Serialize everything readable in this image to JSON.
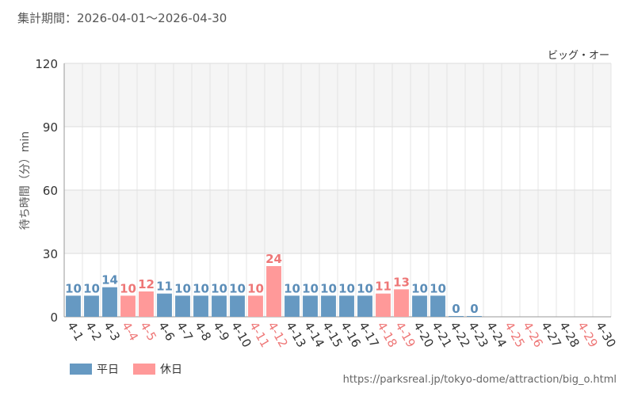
{
  "header": {
    "period_text": "集計期間：2026-04-01～2026-04-30"
  },
  "legend": {
    "weekday_label": "平日",
    "holiday_label": "休日"
  },
  "footer": {
    "source_url": "https://parksreal.jp/tokyo-dome/attraction/big_o.html"
  },
  "colors": {
    "weekday": "#6699c2",
    "holiday": "#ff9999",
    "weekday_text": "#5b8db8",
    "holiday_text": "#ee7777"
  },
  "chart_data": {
    "type": "bar",
    "title": "ビッグ・オー",
    "ylabel": "待ち時間（分）min",
    "ylim": [
      0,
      120
    ],
    "yticks": [
      0,
      30,
      60,
      90,
      120
    ],
    "grid": true,
    "categories": [
      "4-1",
      "4-2",
      "4-3",
      "4-4",
      "4-5",
      "4-6",
      "4-7",
      "4-8",
      "4-9",
      "4-10",
      "4-11",
      "4-12",
      "4-13",
      "4-14",
      "4-15",
      "4-16",
      "4-17",
      "4-18",
      "4-19",
      "4-20",
      "4-21",
      "4-22",
      "4-23",
      "4-24",
      "4-25",
      "4-26",
      "4-27",
      "4-28",
      "4-29",
      "4-30"
    ],
    "values": [
      10,
      10,
      14,
      10,
      12,
      11,
      10,
      10,
      10,
      10,
      10,
      24,
      10,
      10,
      10,
      10,
      10,
      11,
      13,
      10,
      10,
      0,
      0,
      null,
      null,
      null,
      null,
      null,
      null,
      null
    ],
    "day_type": [
      "weekday",
      "weekday",
      "weekday",
      "holiday",
      "holiday",
      "weekday",
      "weekday",
      "weekday",
      "weekday",
      "weekday",
      "holiday",
      "holiday",
      "weekday",
      "weekday",
      "weekday",
      "weekday",
      "weekday",
      "holiday",
      "holiday",
      "weekday",
      "weekday",
      "weekday",
      "weekday",
      "weekday",
      "holiday",
      "holiday",
      "weekday",
      "weekday",
      "holiday",
      "weekday"
    ]
  }
}
